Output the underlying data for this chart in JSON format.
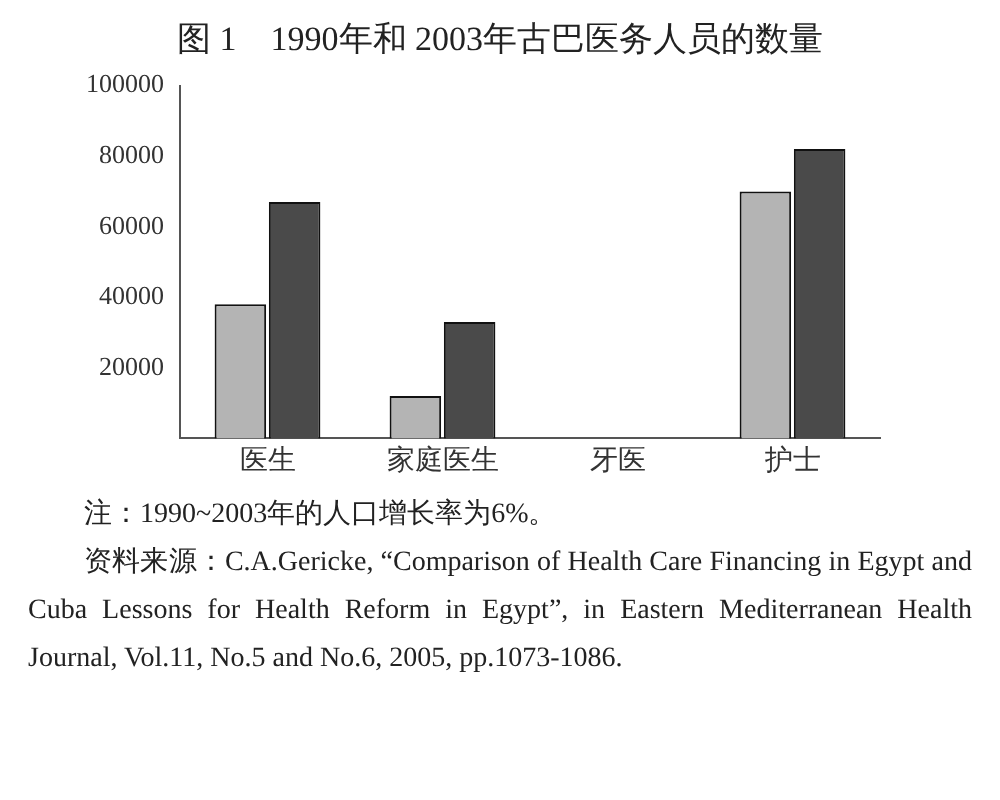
{
  "chart_data": {
    "type": "bar",
    "title": "图 1　1990年和 2003年古巴医务人员的数量",
    "categories": [
      "医生",
      "家庭医生",
      "牙医",
      "护士"
    ],
    "series": [
      {
        "color": "#b4b4b4",
        "values": [
          38000,
          12000,
          null,
          70000
        ]
      },
      {
        "color": "#4a4a4a",
        "values": [
          67000,
          33000,
          null,
          82000
        ]
      }
    ],
    "ylim": [
      0,
      100000
    ],
    "yticks": [
      20000,
      40000,
      60000,
      80000,
      100000
    ],
    "grid": false,
    "legend": false,
    "annotations": [
      "注：1990~2003年的人口增长率为6%。",
      "资料来源：C.A.Gericke, “Comparison of Health Care Financing in Egypt and Cuba Lessons for Health Reform in Egypt”, in Eastern Mediterranean Health Journal, Vol.11, No.5 and No.6, 2005, pp.1073-1086."
    ]
  }
}
